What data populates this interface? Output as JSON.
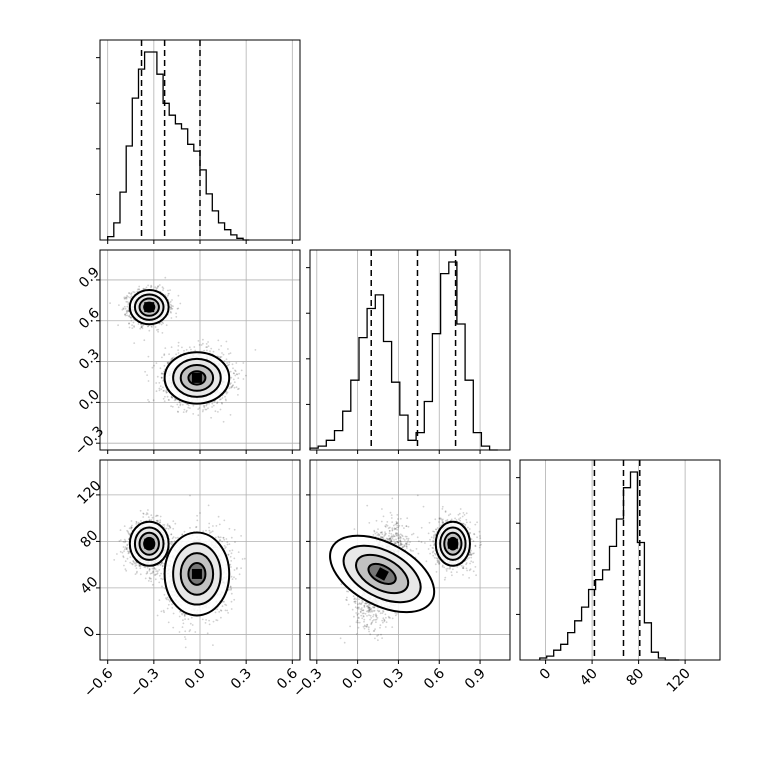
{
  "chart_data": {
    "type": "corner",
    "parameters": [
      "",
      "",
      ""
    ],
    "axis_ranges": {
      "p0": [
        -0.65,
        0.65
      ],
      "p1": [
        -0.35,
        1.12
      ],
      "p2": [
        -22,
        150
      ]
    },
    "ticks": {
      "p0": [
        -0.6,
        -0.3,
        0.0,
        0.3,
        0.6
      ],
      "p1": [
        -0.3,
        0.0,
        0.3,
        0.6,
        0.9
      ],
      "p2": [
        0,
        40,
        80,
        120
      ]
    },
    "tick_labels": {
      "p0": [
        "−0.6",
        "−0.3",
        "0.0",
        "0.3",
        "0.6"
      ],
      "p1": [
        "−0.3",
        "0.0",
        "0.3",
        "0.6",
        "0.9"
      ],
      "p2": [
        "0",
        "40",
        "80",
        "120"
      ]
    },
    "quantiles": {
      "p0": [
        -0.38,
        -0.23,
        0.0
      ],
      "p1": [
        0.1,
        0.44,
        0.72
      ],
      "p2": [
        42,
        67,
        81
      ]
    },
    "histograms": {
      "p0": {
        "edges": [
          -0.6,
          -0.56,
          -0.52,
          -0.48,
          -0.44,
          -0.4,
          -0.36,
          -0.32,
          -0.28,
          -0.24,
          -0.2,
          -0.16,
          -0.12,
          -0.08,
          -0.04,
          0.0,
          0.04,
          0.08,
          0.12,
          0.16,
          0.2,
          0.24,
          0.28,
          0.32
        ],
        "counts": [
          2,
          10,
          28,
          55,
          83,
          100,
          110,
          110,
          97,
          80,
          73,
          68,
          65,
          56,
          52,
          41,
          27,
          17,
          10,
          6,
          3,
          1,
          0
        ]
      },
      "p1": {
        "edges": [
          -0.35,
          -0.29,
          -0.23,
          -0.17,
          -0.11,
          -0.05,
          0.01,
          0.07,
          0.13,
          0.19,
          0.25,
          0.31,
          0.37,
          0.43,
          0.49,
          0.55,
          0.61,
          0.67,
          0.73,
          0.79,
          0.85,
          0.91,
          0.97,
          1.03
        ],
        "counts": [
          1,
          2,
          5,
          10,
          20,
          36,
          58,
          73,
          80,
          56,
          35,
          18,
          5,
          9,
          25,
          60,
          91,
          97,
          65,
          36,
          9,
          2,
          0
        ]
      },
      "p2": {
        "edges": [
          -5,
          1,
          7,
          13,
          19,
          25,
          31,
          37,
          43,
          49,
          55,
          61,
          67,
          73,
          79,
          85,
          91,
          97,
          103,
          109,
          115
        ],
        "counts": [
          1,
          2,
          5,
          8,
          14,
          20,
          27,
          36,
          41,
          46,
          58,
          72,
          88,
          96,
          60,
          19,
          4,
          1,
          0,
          0
        ]
      }
    },
    "modes": [
      {
        "p0": -0.33,
        "p1": 0.7,
        "p2": 78,
        "spread": [
          0.06,
          0.06,
          9
        ]
      },
      {
        "p0": -0.02,
        "p1": 0.18,
        "p2": 52,
        "spread": [
          0.1,
          0.09,
          17
        ]
      }
    ],
    "grid": true
  }
}
